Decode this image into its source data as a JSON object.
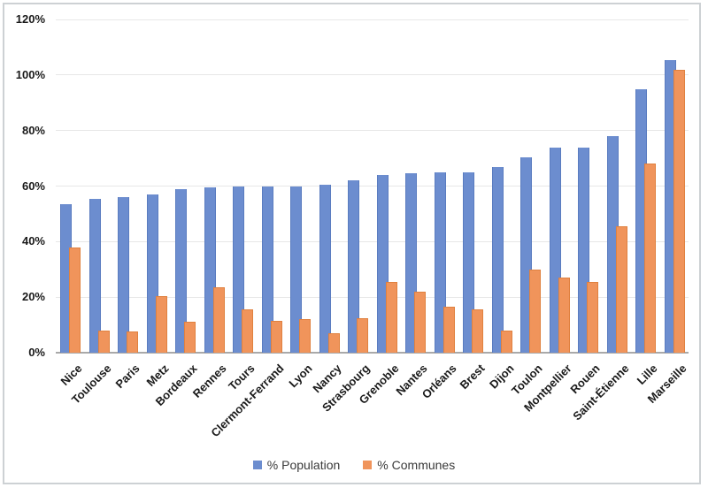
{
  "chart_data": {
    "type": "bar",
    "title": "",
    "xlabel": "",
    "ylabel": "",
    "ylim": [
      0,
      120
    ],
    "ytick_step": 20,
    "ytick_labels": [
      "0%",
      "20%",
      "40%",
      "60%",
      "80%",
      "100%",
      "120%"
    ],
    "grid": true,
    "legend_position": "bottom",
    "categories": [
      "Nice",
      "Toulouse",
      "Paris",
      "Metz",
      "Bordeaux",
      "Rennes",
      "Tours",
      "Clermont-Ferrand",
      "Lyon",
      "Nancy",
      "Strasbourg",
      "Grenoble",
      "Nantes",
      "Orléans",
      "Brest",
      "Dijon",
      "Toulon",
      "Montpellier",
      "Rouen",
      "Saint-Étienne",
      "Lille",
      "Marseille"
    ],
    "series": [
      {
        "name": "% Population",
        "color": "#6c8dcf",
        "edge_color": "#5a7cc0",
        "values": [
          53.5,
          55.5,
          56,
          57,
          59,
          59.5,
          60,
          60,
          60,
          60.5,
          62,
          64,
          64.5,
          65,
          65,
          67,
          70.5,
          74,
          74,
          78,
          95,
          105.5
        ]
      },
      {
        "name": "% Communes",
        "color": "#f0945b",
        "edge_color": "#e0813f",
        "values": [
          38,
          8,
          7.5,
          20.5,
          11,
          23.5,
          15.5,
          11.5,
          12,
          7,
          12.5,
          25.5,
          22,
          16.5,
          15.5,
          8,
          30,
          27,
          25.5,
          45.5,
          68,
          102
        ]
      }
    ],
    "colors": {
      "gridline": "#e7e7e7",
      "axis_line": "#a9a9a9",
      "frame_border": "#cdd1d4",
      "label_text": "#1a1a1a",
      "legend_text": "#3a3a3a",
      "background": "#ffffff"
    }
  }
}
